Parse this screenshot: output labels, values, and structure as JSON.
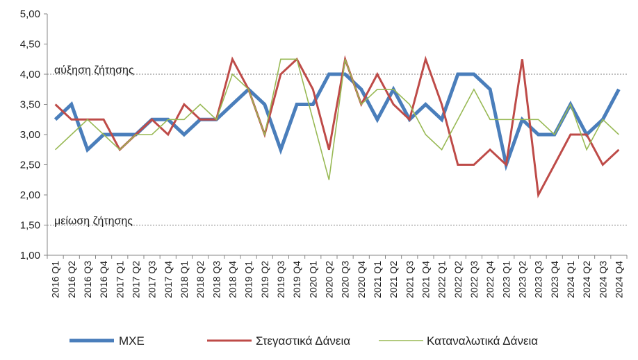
{
  "chart_data": {
    "type": "line",
    "title": "",
    "xlabel": "",
    "ylabel": "",
    "ylim": [
      1.0,
      5.0
    ],
    "y_ticks": [
      "1,00",
      "1,50",
      "2,00",
      "2,50",
      "3,00",
      "3,50",
      "4,00",
      "4,50",
      "5,00"
    ],
    "grid": false,
    "legend_position": "bottom",
    "annotations": [
      {
        "text": "αύξηση ζήτησης",
        "y": 4.0
      },
      {
        "text": "μείωση ζήτησης",
        "y": 1.5
      }
    ],
    "categories": [
      "2016 Q1",
      "2016 Q2",
      "2016 Q3",
      "2016 Q4",
      "2017 Q1",
      "2017 Q2",
      "2017 Q3",
      "2017 Q4",
      "2018 Q1",
      "2018 Q2",
      "2018 Q3",
      "2018 Q4",
      "2019 Q1",
      "2019 Q2",
      "2019 Q3",
      "2019 Q4",
      "2020 Q1",
      "2020 Q2",
      "2020 Q3",
      "2020 Q4",
      "2021 Q1",
      "2021 Q2",
      "2021 Q3",
      "2021 Q4",
      "2022 Q1",
      "2022 Q2",
      "2022 Q3",
      "2022 Q4",
      "2023 Q1",
      "2023 Q2",
      "2023 Q3",
      "2023 Q4",
      "2024 Q1",
      "2024 Q2",
      "2024 Q3",
      "2024 Q4"
    ],
    "series": [
      {
        "name": "ΜΧΕ",
        "color": "#4a7ebb",
        "values": [
          3.25,
          3.5,
          2.75,
          3.0,
          3.0,
          3.0,
          3.25,
          3.25,
          3.0,
          3.25,
          3.25,
          3.5,
          3.75,
          3.5,
          2.75,
          3.5,
          3.5,
          4.0,
          4.0,
          3.75,
          3.25,
          3.75,
          3.25,
          3.5,
          3.25,
          4.0,
          4.0,
          3.75,
          2.5,
          3.25,
          3.0,
          3.0,
          3.5,
          3.0,
          3.25,
          3.75
        ]
      },
      {
        "name": "Στεγαστικά Δάνεια",
        "color": "#be4b48",
        "values": [
          3.5,
          3.25,
          3.25,
          3.25,
          2.75,
          3.0,
          3.25,
          3.0,
          3.5,
          3.25,
          3.25,
          4.25,
          3.75,
          3.0,
          4.0,
          4.25,
          3.75,
          2.75,
          4.25,
          3.5,
          4.0,
          3.5,
          3.25,
          4.25,
          3.5,
          2.5,
          2.5,
          2.75,
          2.5,
          4.25,
          2.0,
          2.5,
          3.0,
          3.0,
          2.5,
          2.75
        ]
      },
      {
        "name": "Καταναλωτικά Δάνεια",
        "color": "#98b954",
        "values": [
          2.75,
          3.0,
          3.25,
          3.0,
          2.75,
          3.0,
          3.0,
          3.25,
          3.25,
          3.5,
          3.25,
          4.0,
          3.75,
          3.0,
          4.25,
          4.25,
          3.25,
          2.25,
          4.25,
          3.5,
          3.75,
          3.75,
          3.5,
          3.0,
          2.75,
          3.25,
          3.75,
          3.25,
          3.25,
          3.25,
          3.25,
          3.0,
          3.5,
          2.75,
          3.25,
          3.0
        ]
      }
    ]
  }
}
